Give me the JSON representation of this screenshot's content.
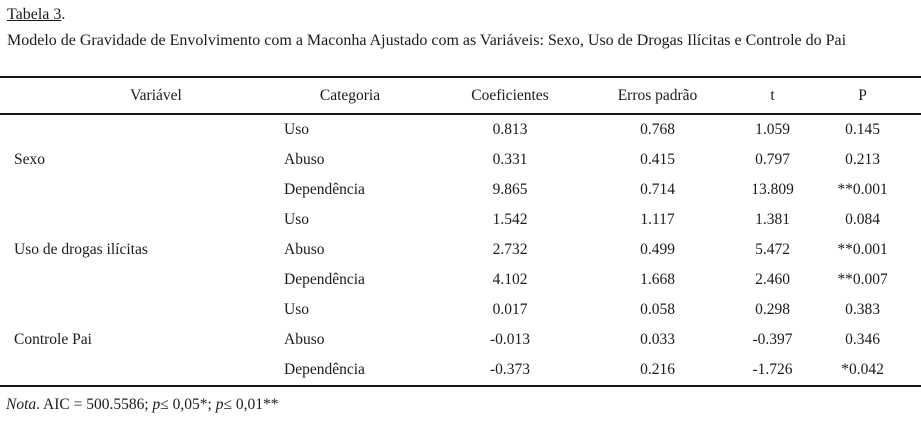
{
  "page": {
    "title": "Tabela 3",
    "title_period": ".",
    "caption": "Modelo de Gravidade de Envolvimento com a Maconha Ajustado com as Variáveis: Sexo, Uso de Drogas Ilícitas e Controle do Pai"
  },
  "table": {
    "columns": [
      "Variável",
      "Categoria",
      "Coeficientes",
      "Erros padrão",
      "t",
      "P"
    ],
    "groups": [
      {
        "variable": "Sexo",
        "rows": [
          {
            "categoria": "Uso",
            "coeficiente": "0.813",
            "erro_padrao": "0.768",
            "t": "1.059",
            "p": "0.145"
          },
          {
            "categoria": "Abuso",
            "coeficiente": "0.331",
            "erro_padrao": "0.415",
            "t": "0.797",
            "p": "0.213"
          },
          {
            "categoria": "Dependência",
            "coeficiente": "9.865",
            "erro_padrao": "0.714",
            "t": "13.809",
            "p": "**0.001"
          }
        ]
      },
      {
        "variable": "Uso de drogas ilícitas",
        "rows": [
          {
            "categoria": "Uso",
            "coeficiente": "1.542",
            "erro_padrao": "1.117",
            "t": "1.381",
            "p": "0.084"
          },
          {
            "categoria": "Abuso",
            "coeficiente": "2.732",
            "erro_padrao": "0.499",
            "t": "5.472",
            "p": "**0.001"
          },
          {
            "categoria": "Dependência",
            "coeficiente": "4.102",
            "erro_padrao": "1.668",
            "t": "2.460",
            "p": "**0.007"
          }
        ]
      },
      {
        "variable": "Controle Pai",
        "rows": [
          {
            "categoria": "Uso",
            "coeficiente": "0.017",
            "erro_padrao": "0.058",
            "t": "0.298",
            "p": "0.383"
          },
          {
            "categoria": "Abuso",
            "coeficiente": "-0.013",
            "erro_padrao": "0.033",
            "t": "-0.397",
            "p": "0.346"
          },
          {
            "categoria": "Dependência",
            "coeficiente": "-0.373",
            "erro_padrao": "0.216",
            "t": "-1.726",
            "p": "*0.042"
          }
        ]
      }
    ]
  },
  "note": {
    "parts": [
      {
        "text": "Nota",
        "italic": true
      },
      {
        "text": ". AIC = 500.5586; ",
        "italic": false
      },
      {
        "text": "p",
        "italic": true
      },
      {
        "text": "≤ 0,05*; ",
        "italic": false
      },
      {
        "text": "p",
        "italic": true
      },
      {
        "text": "≤ 0,01**",
        "italic": false
      }
    ]
  },
  "colors": {
    "background": "#ffffff",
    "text": "#1b1b1b",
    "rule": "#151515"
  }
}
